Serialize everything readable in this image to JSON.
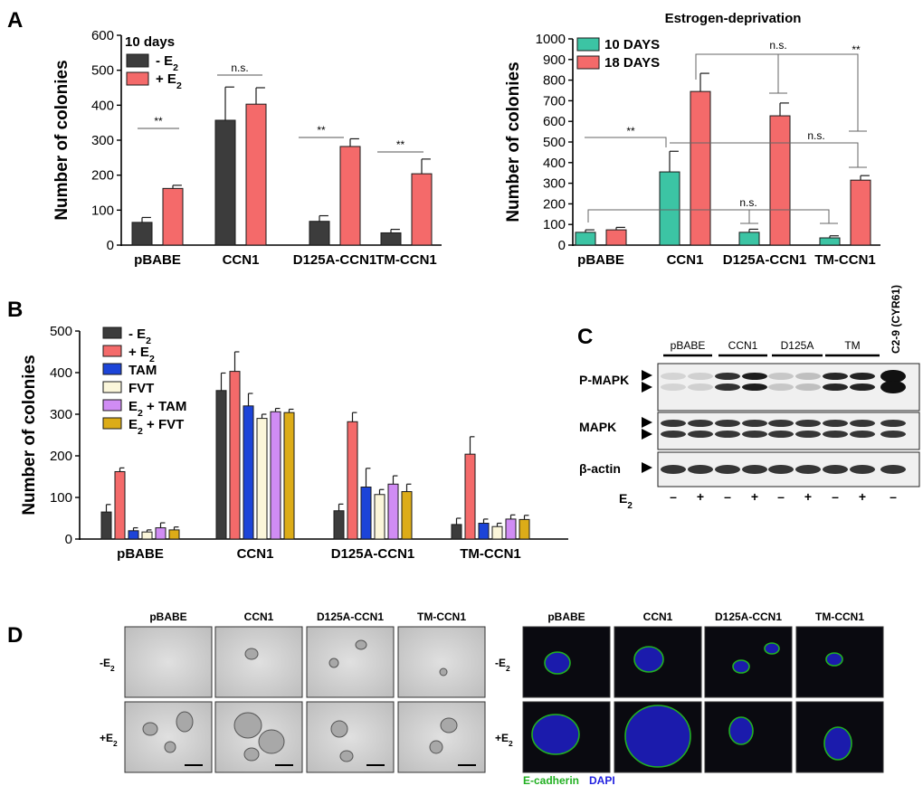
{
  "panels": {
    "a": "A",
    "b": "B",
    "c": "C",
    "d": "D"
  },
  "chart_data": [
    {
      "id": "A-left",
      "type": "bar",
      "title": "",
      "xlabel": "",
      "ylabel": "Number of colonies",
      "ylim": [
        0,
        600
      ],
      "yticks": [
        "0",
        "100",
        "200",
        "300",
        "400",
        "500",
        "600"
      ],
      "categories": [
        "pBABE",
        "CCN1",
        "D125A-CCN1",
        "TM-CCN1"
      ],
      "legend_title": "10 days",
      "legend_position": "top-left",
      "series": [
        {
          "name": "- E",
          "sub": "2",
          "color": "#3c3c3c",
          "values": [
            65,
            357,
            68,
            35
          ],
          "errors": [
            14,
            95,
            16,
            10
          ]
        },
        {
          "name": "+ E",
          "sub": "2",
          "color": "#f46a6a",
          "values": [
            162,
            403,
            282,
            204
          ],
          "errors": [
            9,
            47,
            22,
            42
          ]
        }
      ],
      "annotations": [
        "**",
        "n.s.",
        "**",
        "**"
      ]
    },
    {
      "id": "A-right",
      "type": "bar",
      "title": "Estrogen-deprivation",
      "xlabel": "",
      "ylabel": "Number of colonies",
      "ylim": [
        0,
        1000
      ],
      "yticks": [
        "0",
        "100",
        "200",
        "300",
        "400",
        "500",
        "600",
        "700",
        "800",
        "900",
        "1000"
      ],
      "categories": [
        "pBABE",
        "CCN1",
        "D125A-CCN1",
        "TM-CCN1"
      ],
      "legend_position": "top-left",
      "series": [
        {
          "name": "10 DAYS",
          "color": "#3cc4a4",
          "values": [
            62,
            355,
            62,
            35
          ],
          "errors": [
            12,
            100,
            15,
            10
          ]
        },
        {
          "name": "18 DAYS",
          "color": "#f46a6a",
          "values": [
            74,
            745,
            627,
            315
          ],
          "errors": [
            12,
            88,
            62,
            22
          ]
        }
      ],
      "annotations": [
        "**",
        "n.s.",
        "n.s.",
        "n.s.",
        "**"
      ]
    },
    {
      "id": "B",
      "type": "bar",
      "title": "",
      "xlabel": "",
      "ylabel": "Number of colonies",
      "ylim": [
        0,
        500
      ],
      "yticks": [
        "0",
        "100",
        "200",
        "300",
        "400",
        "500"
      ],
      "categories": [
        "pBABE",
        "CCN1",
        "D125A-CCN1",
        "TM-CCN1"
      ],
      "legend_position": "top-left",
      "series": [
        {
          "name": "- E",
          "sub": "2",
          "color": "#3c3c3c",
          "values": [
            65,
            357,
            68,
            35
          ],
          "errors": [
            18,
            42,
            16,
            15
          ]
        },
        {
          "name": "+ E",
          "sub": "2",
          "color": "#f46a6a",
          "values": [
            162,
            403,
            282,
            204
          ],
          "errors": [
            9,
            47,
            22,
            42
          ]
        },
        {
          "name": "TAM",
          "color": "#1c44d8",
          "values": [
            20,
            320,
            125,
            38
          ],
          "errors": [
            7,
            30,
            45,
            10
          ]
        },
        {
          "name": "FVT",
          "color": "#fbf6da",
          "values": [
            17,
            290,
            107,
            30
          ],
          "errors": [
            5,
            10,
            12,
            8
          ]
        },
        {
          "name": "E + TAM",
          "sub": "2",
          "sub_after": "E",
          "color": "#d08cf4",
          "values": [
            27,
            306,
            132,
            48
          ],
          "errors": [
            12,
            8,
            20,
            10
          ]
        },
        {
          "name": "E + FVT",
          "sub": "2",
          "sub_after": "E",
          "color": "#dcac18",
          "values": [
            22,
            304,
            114,
            47
          ],
          "errors": [
            7,
            8,
            18,
            10
          ]
        }
      ]
    }
  ],
  "blot": {
    "groups": [
      "pBABE",
      "CCN1",
      "D125A",
      "TM"
    ],
    "control": "C2-9 (CYR61)",
    "rows": [
      "P-MAPK",
      "MAPK",
      "β-actin"
    ],
    "e2_label": "E",
    "e2_sub": "2",
    "lanes": [
      "–",
      "+",
      "–",
      "+",
      "–",
      "+",
      "–",
      "+",
      "–"
    ]
  },
  "images": {
    "columns": [
      "pBABE",
      "CCN1",
      "D125A-CCN1",
      "TM-CCN1"
    ],
    "rows": [
      {
        "label": "-E",
        "sub": "2"
      },
      {
        "label": "+E",
        "sub": "2"
      }
    ],
    "stain_ecad": "E-cadherin",
    "stain_dapi": "DAPI",
    "stain_colors": {
      "ecad": "#22b022",
      "dapi": "#2222e0"
    }
  }
}
